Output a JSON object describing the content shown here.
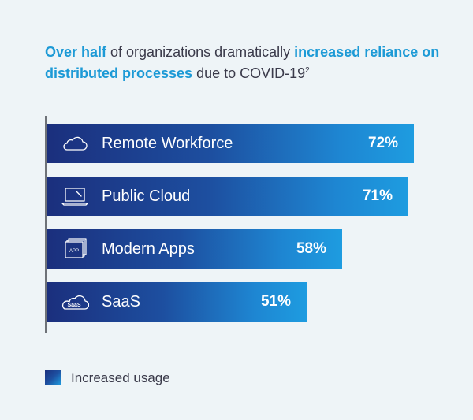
{
  "title": {
    "part1": "Over half",
    "part2": " of organizations dramatically ",
    "part3": "increased reliance on distributed processes",
    "part4": " due to COVID-19",
    "superscript": "2"
  },
  "colors": {
    "accent": "#1d9ad6",
    "bar_start": "#1b2f7d",
    "bar_end": "#1e9ce0",
    "text": "#3a3a4a"
  },
  "chart_data": {
    "type": "bar",
    "orientation": "horizontal",
    "categories": [
      "Remote Workforce",
      "Public Cloud",
      "Modern Apps",
      "SaaS"
    ],
    "icons": [
      "cloud-icon",
      "laptop-icon",
      "app-stack-icon",
      "saas-cloud-icon"
    ],
    "series": [
      {
        "name": "Increased usage",
        "values": [
          72,
          71,
          58,
          51
        ],
        "labels": [
          "72%",
          "71%",
          "58%",
          "51%"
        ]
      }
    ],
    "xlim": [
      0,
      100
    ],
    "grid": false,
    "legend": "bottom-left"
  },
  "icon_text": {
    "app": "APP",
    "saas": "SaaS"
  },
  "legend": {
    "label": "Increased usage"
  }
}
